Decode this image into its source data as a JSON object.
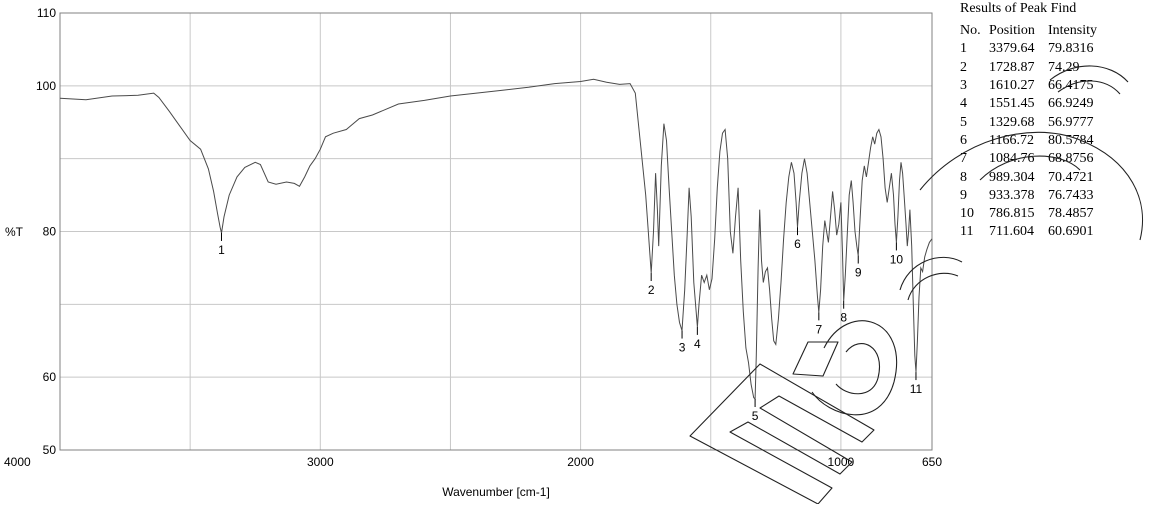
{
  "chart_data": {
    "type": "line",
    "title": "",
    "xlabel": "Wavenumber [cm-1]",
    "ylabel": "%T",
    "xlim": [
      4000,
      650
    ],
    "ylim": [
      50,
      110
    ],
    "x_reversed": true,
    "grid": true,
    "x_ticks": [
      4000,
      3000,
      2000,
      1000,
      650
    ],
    "x_tick_labels": [
      "4000",
      "3000",
      "2000",
      "1000",
      "650"
    ],
    "x_gridlines": [
      3500,
      3000,
      2500,
      2000,
      1500,
      1000
    ],
    "y_ticks": [
      50,
      60,
      80,
      100,
      110
    ],
    "y_tick_labels": [
      "50",
      "60",
      "80",
      "100",
      "110"
    ],
    "y_gridlines": [
      60,
      70,
      80,
      90,
      100
    ],
    "line_color": "#4a4a4a",
    "grid_color": "#c8c8c8",
    "series": [
      {
        "points": [
          [
            4000,
            98.3
          ],
          [
            3900,
            98.1
          ],
          [
            3800,
            98.6
          ],
          [
            3700,
            98.7
          ],
          [
            3640,
            99.0
          ],
          [
            3620,
            98.4
          ],
          [
            3580,
            96.5
          ],
          [
            3540,
            94.5
          ],
          [
            3500,
            92.5
          ],
          [
            3460,
            91.3
          ],
          [
            3430,
            88.6
          ],
          [
            3410,
            85.5
          ],
          [
            3395,
            82.5
          ],
          [
            3385,
            80.6
          ],
          [
            3379.64,
            79.8
          ],
          [
            3370,
            82.0
          ],
          [
            3350,
            85.0
          ],
          [
            3320,
            87.5
          ],
          [
            3290,
            88.8
          ],
          [
            3250,
            89.5
          ],
          [
            3230,
            89.2
          ],
          [
            3200,
            86.8
          ],
          [
            3170,
            86.5
          ],
          [
            3130,
            86.8
          ],
          [
            3100,
            86.6
          ],
          [
            3080,
            86.2
          ],
          [
            3060,
            87.5
          ],
          [
            3040,
            89.0
          ],
          [
            3020,
            90.0
          ],
          [
            3000,
            91.3
          ],
          [
            2980,
            93.0
          ],
          [
            2950,
            93.5
          ],
          [
            2900,
            94.0
          ],
          [
            2850,
            95.5
          ],
          [
            2800,
            96.0
          ],
          [
            2700,
            97.5
          ],
          [
            2600,
            98.0
          ],
          [
            2500,
            98.6
          ],
          [
            2400,
            99.0
          ],
          [
            2300,
            99.4
          ],
          [
            2200,
            99.8
          ],
          [
            2100,
            100.3
          ],
          [
            2000,
            100.6
          ],
          [
            1950,
            100.9
          ],
          [
            1900,
            100.5
          ],
          [
            1850,
            100.2
          ],
          [
            1810,
            100.3
          ],
          [
            1790,
            99.0
          ],
          [
            1770,
            92.0
          ],
          [
            1750,
            85.0
          ],
          [
            1740,
            80.0
          ],
          [
            1728.87,
            74.3
          ],
          [
            1720,
            80.0
          ],
          [
            1712,
            88.0
          ],
          [
            1705,
            83.0
          ],
          [
            1700,
            78.0
          ],
          [
            1690,
            89.0
          ],
          [
            1680,
            94.8
          ],
          [
            1670,
            92.5
          ],
          [
            1660,
            86.0
          ],
          [
            1650,
            80.0
          ],
          [
            1640,
            74.0
          ],
          [
            1630,
            70.0
          ],
          [
            1620,
            67.5
          ],
          [
            1610.27,
            66.4
          ],
          [
            1600,
            72.0
          ],
          [
            1590,
            80.0
          ],
          [
            1583,
            86.0
          ],
          [
            1575,
            82.0
          ],
          [
            1565,
            73.0
          ],
          [
            1551.45,
            66.9
          ],
          [
            1545,
            70.0
          ],
          [
            1535,
            74.0
          ],
          [
            1525,
            73.0
          ],
          [
            1515,
            74.0
          ],
          [
            1505,
            72.0
          ],
          [
            1495,
            73.5
          ],
          [
            1485,
            79.0
          ],
          [
            1475,
            86.0
          ],
          [
            1465,
            91.0
          ],
          [
            1455,
            93.5
          ],
          [
            1445,
            94.0
          ],
          [
            1435,
            90.0
          ],
          [
            1425,
            80.0
          ],
          [
            1415,
            77.0
          ],
          [
            1405,
            82.0
          ],
          [
            1395,
            86.0
          ],
          [
            1385,
            76.0
          ],
          [
            1375,
            69.0
          ],
          [
            1365,
            64.0
          ],
          [
            1355,
            62.0
          ],
          [
            1345,
            59.0
          ],
          [
            1335,
            57.2
          ],
          [
            1329.68,
            57.0
          ],
          [
            1325,
            63.0
          ],
          [
            1318,
            75.0
          ],
          [
            1312,
            83.0
          ],
          [
            1305,
            76.0
          ],
          [
            1298,
            73.0
          ],
          [
            1290,
            74.5
          ],
          [
            1282,
            75.0
          ],
          [
            1274,
            72.0
          ],
          [
            1266,
            68.0
          ],
          [
            1258,
            65.0
          ],
          [
            1250,
            64.5
          ],
          [
            1240,
            68.0
          ],
          [
            1230,
            73.0
          ],
          [
            1220,
            79.0
          ],
          [
            1210,
            84.0
          ],
          [
            1200,
            87.5
          ],
          [
            1190,
            89.5
          ],
          [
            1180,
            88.0
          ],
          [
            1172,
            84.0
          ],
          [
            1166.72,
            80.6
          ],
          [
            1160,
            84.0
          ],
          [
            1150,
            88.0
          ],
          [
            1140,
            90.0
          ],
          [
            1130,
            88.0
          ],
          [
            1120,
            84.0
          ],
          [
            1110,
            80.0
          ],
          [
            1100,
            76.0
          ],
          [
            1090,
            71.0
          ],
          [
            1084.76,
            68.9
          ],
          [
            1078,
            72.0
          ],
          [
            1070,
            78.0
          ],
          [
            1062,
            81.5
          ],
          [
            1055,
            80.0
          ],
          [
            1048,
            78.5
          ],
          [
            1040,
            82.0
          ],
          [
            1032,
            85.5
          ],
          [
            1024,
            83.0
          ],
          [
            1016,
            79.5
          ],
          [
            1008,
            81.0
          ],
          [
            1000,
            84.0
          ],
          [
            994,
            77.0
          ],
          [
            989.304,
            70.5
          ],
          [
            983,
            74.0
          ],
          [
            975,
            80.0
          ],
          [
            968,
            85.0
          ],
          [
            960,
            87.0
          ],
          [
            953,
            84.0
          ],
          [
            946,
            80.0
          ],
          [
            939,
            78.0
          ],
          [
            933.378,
            76.7
          ],
          [
            926,
            82.0
          ],
          [
            918,
            87.0
          ],
          [
            910,
            89.0
          ],
          [
            902,
            87.5
          ],
          [
            894,
            89.5
          ],
          [
            886,
            91.5
          ],
          [
            878,
            93.0
          ],
          [
            870,
            92.0
          ],
          [
            862,
            93.5
          ],
          [
            854,
            94.0
          ],
          [
            846,
            93.0
          ],
          [
            838,
            90.0
          ],
          [
            830,
            86.0
          ],
          [
            822,
            84.0
          ],
          [
            814,
            86.0
          ],
          [
            806,
            88.0
          ],
          [
            798,
            85.0
          ],
          [
            792,
            81.0
          ],
          [
            786.815,
            78.5
          ],
          [
            781,
            82.0
          ],
          [
            775,
            87.0
          ],
          [
            769,
            89.5
          ],
          [
            763,
            88.0
          ],
          [
            757,
            85.0
          ],
          [
            750,
            81.0
          ],
          [
            745,
            78.0
          ],
          [
            740,
            80.0
          ],
          [
            735,
            83.0
          ],
          [
            728,
            78.0
          ],
          [
            722,
            70.0
          ],
          [
            716,
            63.0
          ],
          [
            711.604,
            60.7
          ],
          [
            706,
            65.0
          ],
          [
            700,
            71.0
          ],
          [
            693,
            75.0
          ],
          [
            686,
            74.5
          ],
          [
            678,
            76.5
          ],
          [
            670,
            77.5
          ],
          [
            660,
            78.5
          ],
          [
            650,
            79.0
          ]
        ]
      }
    ],
    "peak_labels": [
      "1",
      "2",
      "3",
      "4",
      "5",
      "6",
      "7",
      "8",
      "9",
      "10",
      "11"
    ],
    "peak_label_positions": [
      [
        3379.64,
        79.8
      ],
      [
        1728.87,
        74.3
      ],
      [
        1610.27,
        66.4
      ],
      [
        1551.45,
        66.9
      ],
      [
        1329.68,
        57.0
      ],
      [
        1166.72,
        80.6
      ],
      [
        1084.76,
        68.9
      ],
      [
        989.304,
        70.5
      ],
      [
        933.378,
        76.7
      ],
      [
        786.815,
        78.5
      ],
      [
        711.604,
        60.7
      ]
    ],
    "annotation_table": {
      "title": "Results of Peak Find",
      "columns": [
        "No.",
        "Position",
        "Intensity"
      ],
      "rows": [
        [
          "1",
          "3379.64",
          "79.8316"
        ],
        [
          "2",
          "1728.87",
          "74.29"
        ],
        [
          "3",
          "1610.27",
          "66.4175"
        ],
        [
          "4",
          "1551.45",
          "66.9249"
        ],
        [
          "5",
          "1329.68",
          "56.9777"
        ],
        [
          "6",
          "1166.72",
          "80.5784"
        ],
        [
          "7",
          "1084.76",
          "68.8756"
        ],
        [
          "8",
          "989.304",
          "70.4721"
        ],
        [
          "9",
          "933.378",
          "76.7433"
        ],
        [
          "10",
          "786.815",
          "78.4857"
        ],
        [
          "11",
          "711.604",
          "60.6901"
        ]
      ]
    }
  }
}
